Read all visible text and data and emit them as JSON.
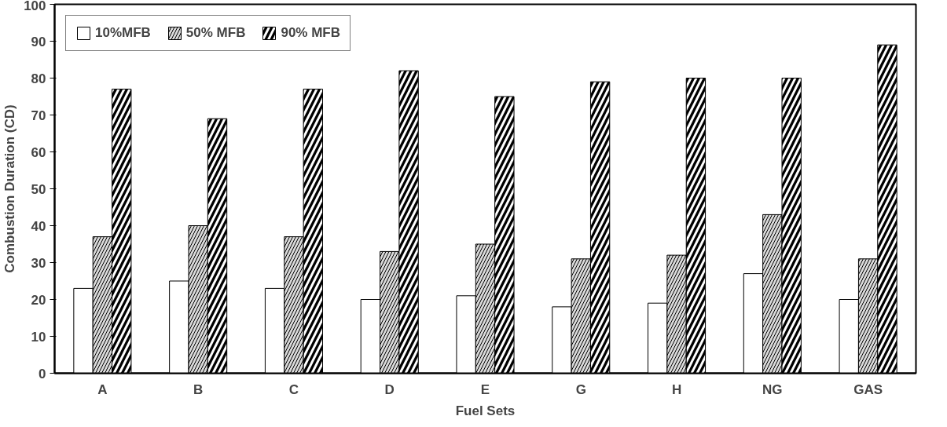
{
  "chart_data": {
    "type": "bar",
    "xlabel": "Fuel Sets",
    "ylabel": "Combustion Duration (CD)",
    "categories": [
      "A",
      "B",
      "C",
      "D",
      "E",
      "G",
      "H",
      "NG",
      "GAS"
    ],
    "series": [
      {
        "name": "10%MFB",
        "color": "#ffffff",
        "values": [
          23,
          25,
          23,
          20,
          21,
          18,
          19,
          27,
          20
        ]
      },
      {
        "name": "50% MFB",
        "color": "#d9d9d9",
        "values": [
          37,
          40,
          37,
          33,
          35,
          31,
          32,
          43,
          31
        ]
      },
      {
        "name": "90% MFB",
        "color": "#000000",
        "values": [
          77,
          69,
          77,
          82,
          75,
          79,
          80,
          80,
          89
        ]
      }
    ],
    "ylim": [
      0,
      100
    ],
    "yticks": [
      0,
      10,
      20,
      30,
      40,
      50,
      60,
      70,
      80,
      90,
      100
    ],
    "grid": false,
    "legend": "top left"
  }
}
